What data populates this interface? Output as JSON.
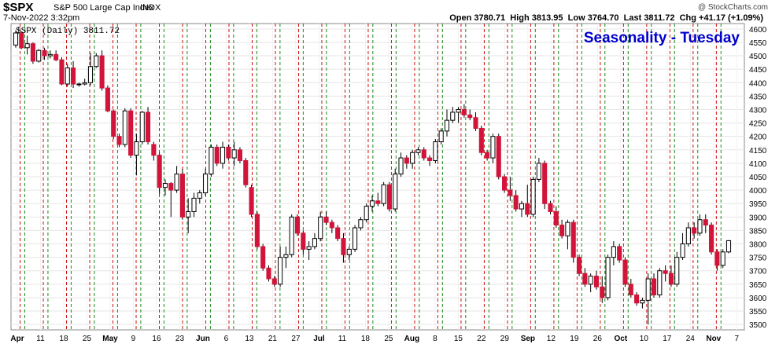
{
  "header": {
    "symbol": "$SPX",
    "name": "S&P 500 Large Cap Index",
    "exchange": "INDX",
    "datetime": "7-Nov-2022 3:32pm",
    "credit": "@ StockCharts.com",
    "open_label": "Open",
    "open": "3780.71",
    "high_label": "High",
    "high": "3813.95",
    "low_label": "Low",
    "low": "3764.70",
    "last_label": "Last",
    "last": "3811.72",
    "chg_label": "Chg",
    "chg": "+41.17 (+1.09%)"
  },
  "chart_data": {
    "type": "candlestick",
    "title": "Seasonality - Tuesday",
    "legend": "$SPX (Daily) 3811.72",
    "legend_position": "top-left",
    "grid": true,
    "ylim": [
      3480,
      4620
    ],
    "yticks": [
      3500,
      3550,
      3600,
      3650,
      3700,
      3750,
      3800,
      3850,
      3900,
      3950,
      4000,
      4050,
      4100,
      4150,
      4200,
      4250,
      4300,
      4350,
      4400,
      4450,
      4500,
      4550,
      4600
    ],
    "xticks": [
      "Apr",
      "11",
      "18",
      "25",
      "May",
      "9",
      "16",
      "23",
      "Jun",
      "6",
      "13",
      "21",
      "27",
      "Jul",
      "11",
      "18",
      "25",
      "Aug",
      "8",
      "15",
      "22",
      "29",
      "Sep",
      "12",
      "19",
      "26",
      "Oct",
      "10",
      "17",
      "24",
      "Nov",
      "7"
    ],
    "colors": {
      "up": "#ffffff",
      "down": "#d2143a",
      "green_line": "#1a8a1a",
      "red_line": "#cc1111",
      "title": "#0000cc"
    },
    "vertical_lines": {
      "green_after_categories": [
        "Apr",
        "11",
        "18",
        "25",
        "May",
        "9",
        "16",
        "23",
        "Jun",
        "6",
        "13",
        "21",
        "27",
        "Jul",
        "11",
        "18",
        "25",
        "Aug",
        "8",
        "15",
        "22",
        "29",
        "Sep",
        "12",
        "19",
        "26",
        "Oct",
        "10",
        "17",
        "24",
        "Nov"
      ],
      "red_at_categories": [
        "Apr",
        "11",
        "18",
        "25",
        "May",
        "9",
        "16",
        "23",
        "Jun",
        "6",
        "13",
        "21",
        "27",
        "Jul",
        "11",
        "18",
        "25",
        "Aug",
        "8",
        "15",
        "22",
        "29",
        "Sep",
        "12",
        "19",
        "26",
        "Oct",
        "10",
        "17",
        "24",
        "Nov"
      ]
    },
    "candles": [
      [
        4540,
        4595,
        4530,
        4585
      ],
      [
        4585,
        4590,
        4525,
        4530
      ],
      [
        4530,
        4575,
        4505,
        4545
      ],
      [
        4545,
        4550,
        4470,
        4480
      ],
      [
        4480,
        4525,
        4475,
        4520
      ],
      [
        4520,
        4530,
        4485,
        4500
      ],
      [
        4500,
        4520,
        4490,
        4505
      ],
      [
        4505,
        4520,
        4480,
        4485
      ],
      [
        4485,
        4495,
        4390,
        4395
      ],
      [
        4395,
        4470,
        4385,
        4455
      ],
      [
        4455,
        4480,
        4380,
        4395
      ],
      [
        4395,
        4400,
        4385,
        4395
      ],
      [
        4395,
        4415,
        4390,
        4400
      ],
      [
        4400,
        4510,
        4390,
        4460
      ],
      [
        4460,
        4510,
        4455,
        4500
      ],
      [
        4500,
        4520,
        4370,
        4380
      ],
      [
        4380,
        4390,
        4290,
        4295
      ],
      [
        4295,
        4300,
        4190,
        4200
      ],
      [
        4200,
        4210,
        4160,
        4170
      ],
      [
        4170,
        4305,
        4160,
        4295
      ],
      [
        4295,
        4305,
        4120,
        4130
      ],
      [
        4130,
        4210,
        4055,
        4180
      ],
      [
        4180,
        4295,
        4170,
        4290
      ],
      [
        4290,
        4310,
        4170,
        4180
      ],
      [
        4170,
        4180,
        4110,
        4130
      ],
      [
        4130,
        4140,
        3985,
        4010
      ],
      [
        4010,
        4040,
        3980,
        4025
      ],
      [
        4025,
        4030,
        3900,
        4000
      ],
      [
        4000,
        4090,
        3990,
        4060
      ],
      [
        4060,
        4080,
        3890,
        3900
      ],
      [
        3900,
        3970,
        3840,
        3920
      ],
      [
        3920,
        3990,
        3900,
        3970
      ],
      [
        3970,
        4000,
        3950,
        3990
      ],
      [
        3990,
        4080,
        3980,
        4060
      ],
      [
        4060,
        4170,
        4050,
        4160
      ],
      [
        4160,
        4170,
        4090,
        4100
      ],
      [
        4100,
        4180,
        4080,
        4160
      ],
      [
        4160,
        4170,
        4110,
        4120
      ],
      [
        4120,
        4180,
        4090,
        4150
      ],
      [
        4150,
        4160,
        4100,
        4110
      ],
      [
        4110,
        4120,
        4010,
        4020
      ],
      [
        4010,
        4020,
        3900,
        3910
      ],
      [
        3910,
        3920,
        3780,
        3790
      ],
      [
        3790,
        3800,
        3700,
        3710
      ],
      [
        3710,
        3720,
        3660,
        3670
      ],
      [
        3670,
        3680,
        3640,
        3650
      ],
      [
        3650,
        3790,
        3640,
        3750
      ],
      [
        3750,
        3790,
        3710,
        3760
      ],
      [
        3760,
        3910,
        3750,
        3900
      ],
      [
        3900,
        3910,
        3830,
        3840
      ],
      [
        3840,
        3850,
        3760,
        3780
      ],
      [
        3780,
        3810,
        3740,
        3790
      ],
      [
        3790,
        3840,
        3780,
        3820
      ],
      [
        3820,
        3920,
        3810,
        3900
      ],
      [
        3900,
        3920,
        3870,
        3880
      ],
      [
        3880,
        3890,
        3840,
        3860
      ],
      [
        3860,
        3870,
        3810,
        3820
      ],
      [
        3820,
        3840,
        3730,
        3760
      ],
      [
        3760,
        3790,
        3740,
        3780
      ],
      [
        3780,
        3870,
        3770,
        3860
      ],
      [
        3860,
        3900,
        3850,
        3890
      ],
      [
        3890,
        3950,
        3880,
        3940
      ],
      [
        3940,
        3980,
        3920,
        3960
      ],
      [
        3960,
        3990,
        3940,
        3950
      ],
      [
        3950,
        4030,
        3940,
        4020
      ],
      [
        4020,
        4030,
        3920,
        3930
      ],
      [
        3930,
        4080,
        3920,
        4060
      ],
      [
        4060,
        4140,
        4050,
        4120
      ],
      [
        4120,
        4130,
        4080,
        4100
      ],
      [
        4100,
        4150,
        4080,
        4140
      ],
      [
        4140,
        4160,
        4130,
        4150
      ],
      [
        4150,
        4160,
        4110,
        4120
      ],
      [
        4120,
        4130,
        4090,
        4110
      ],
      [
        4110,
        4190,
        4100,
        4180
      ],
      [
        4180,
        4230,
        4170,
        4220
      ],
      [
        4220,
        4300,
        4200,
        4260
      ],
      [
        4260,
        4310,
        4250,
        4290
      ],
      [
        4290,
        4310,
        4250,
        4300
      ],
      [
        4300,
        4320,
        4270,
        4280
      ],
      [
        4280,
        4300,
        4260,
        4270
      ],
      [
        4270,
        4290,
        4220,
        4230
      ],
      [
        4230,
        4240,
        4130,
        4140
      ],
      [
        4140,
        4150,
        4110,
        4120
      ],
      [
        4120,
        4210,
        4100,
        4200
      ],
      [
        4200,
        4210,
        4040,
        4050
      ],
      [
        4050,
        4060,
        3990,
        4000
      ],
      [
        4000,
        4050,
        3960,
        3980
      ],
      [
        3980,
        4000,
        3920,
        3930
      ],
      [
        3930,
        3960,
        3900,
        3950
      ],
      [
        3950,
        4020,
        3900,
        3910
      ],
      [
        3910,
        4050,
        3900,
        4040
      ],
      [
        4040,
        4120,
        4030,
        4100
      ],
      [
        4100,
        4110,
        3930,
        3950
      ],
      [
        3950,
        3960,
        3910,
        3920
      ],
      [
        3920,
        3940,
        3860,
        3870
      ],
      [
        3870,
        3890,
        3820,
        3830
      ],
      [
        3830,
        3890,
        3780,
        3880
      ],
      [
        3880,
        3890,
        3730,
        3750
      ],
      [
        3750,
        3760,
        3680,
        3690
      ],
      [
        3690,
        3710,
        3640,
        3650
      ],
      [
        3650,
        3690,
        3620,
        3680
      ],
      [
        3680,
        3700,
        3630,
        3640
      ],
      [
        3640,
        3680,
        3580,
        3600
      ],
      [
        3600,
        3760,
        3590,
        3750
      ],
      [
        3750,
        3810,
        3720,
        3790
      ],
      [
        3790,
        3800,
        3730,
        3740
      ],
      [
        3740,
        3750,
        3640,
        3650
      ],
      [
        3650,
        3670,
        3600,
        3610
      ],
      [
        3610,
        3620,
        3570,
        3580
      ],
      [
        3580,
        3600,
        3560,
        3590
      ],
      [
        3590,
        3690,
        3500,
        3670
      ],
      [
        3670,
        3690,
        3600,
        3610
      ],
      [
        3610,
        3710,
        3600,
        3700
      ],
      [
        3700,
        3720,
        3660,
        3690
      ],
      [
        3690,
        3720,
        3640,
        3650
      ],
      [
        3650,
        3770,
        3640,
        3750
      ],
      [
        3750,
        3840,
        3740,
        3800
      ],
      [
        3800,
        3880,
        3790,
        3860
      ],
      [
        3860,
        3880,
        3820,
        3840
      ],
      [
        3840,
        3910,
        3830,
        3890
      ],
      [
        3890,
        3910,
        3840,
        3870
      ],
      [
        3870,
        3880,
        3760,
        3770
      ],
      [
        3770,
        3780,
        3700,
        3720
      ],
      [
        3720,
        3780,
        3710,
        3770
      ],
      [
        3770,
        3814,
        3765,
        3812
      ]
    ]
  }
}
